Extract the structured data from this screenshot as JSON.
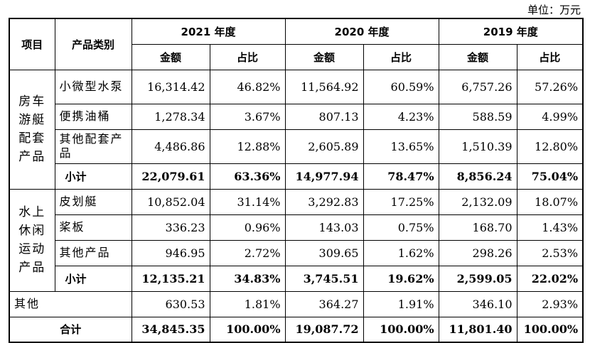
{
  "unit": "单位：万元",
  "headers": {
    "item": "项目",
    "product_type": "产品类别",
    "years": [
      "2021 年度",
      "2020 年度",
      "2019 年度"
    ],
    "amount": "金额",
    "ratio": "占比"
  },
  "groups": [
    {
      "category": "房车游艇配套产品",
      "rows": [
        {
          "name": "小微型水泵",
          "values": [
            "16,314.42",
            "46.82%",
            "11,564.92",
            "60.59%",
            "6,757.26",
            "57.26%"
          ]
        },
        {
          "name": "便携油桶",
          "values": [
            "1,278.34",
            "3.67%",
            "807.13",
            "4.23%",
            "588.59",
            "4.99%"
          ]
        },
        {
          "name": "其他配套产品",
          "values": [
            "4,486.86",
            "12.88%",
            "2,605.89",
            "13.65%",
            "1,510.39",
            "12.80%"
          ]
        }
      ],
      "subtotal": {
        "name": "小计",
        "values": [
          "22,079.61",
          "63.36%",
          "14,977.94",
          "78.47%",
          "8,856.24",
          "75.04%"
        ]
      }
    },
    {
      "category": "水上休闲运动产品",
      "rows": [
        {
          "name": "皮划艇",
          "values": [
            "10,852.04",
            "31.14%",
            "3,292.83",
            "17.25%",
            "2,132.09",
            "18.07%"
          ]
        },
        {
          "name": "桨板",
          "values": [
            "336.23",
            "0.96%",
            "143.03",
            "0.75%",
            "168.70",
            "1.43%"
          ]
        },
        {
          "name": "其他产品",
          "values": [
            "946.95",
            "2.72%",
            "309.65",
            "1.62%",
            "298.26",
            "2.53%"
          ]
        }
      ],
      "subtotal": {
        "name": "小计",
        "values": [
          "12,135.21",
          "34.83%",
          "3,745.51",
          "19.62%",
          "2,599.05",
          "22.02%"
        ]
      }
    }
  ],
  "other": {
    "name": "其他",
    "values": [
      "630.53",
      "1.81%",
      "364.27",
      "1.91%",
      "346.10",
      "2.93%"
    ]
  },
  "total": {
    "name": "合计",
    "values": [
      "34,845.35",
      "100.00%",
      "19,087.72",
      "100.00%",
      "11,801.40",
      "100.00%"
    ]
  }
}
